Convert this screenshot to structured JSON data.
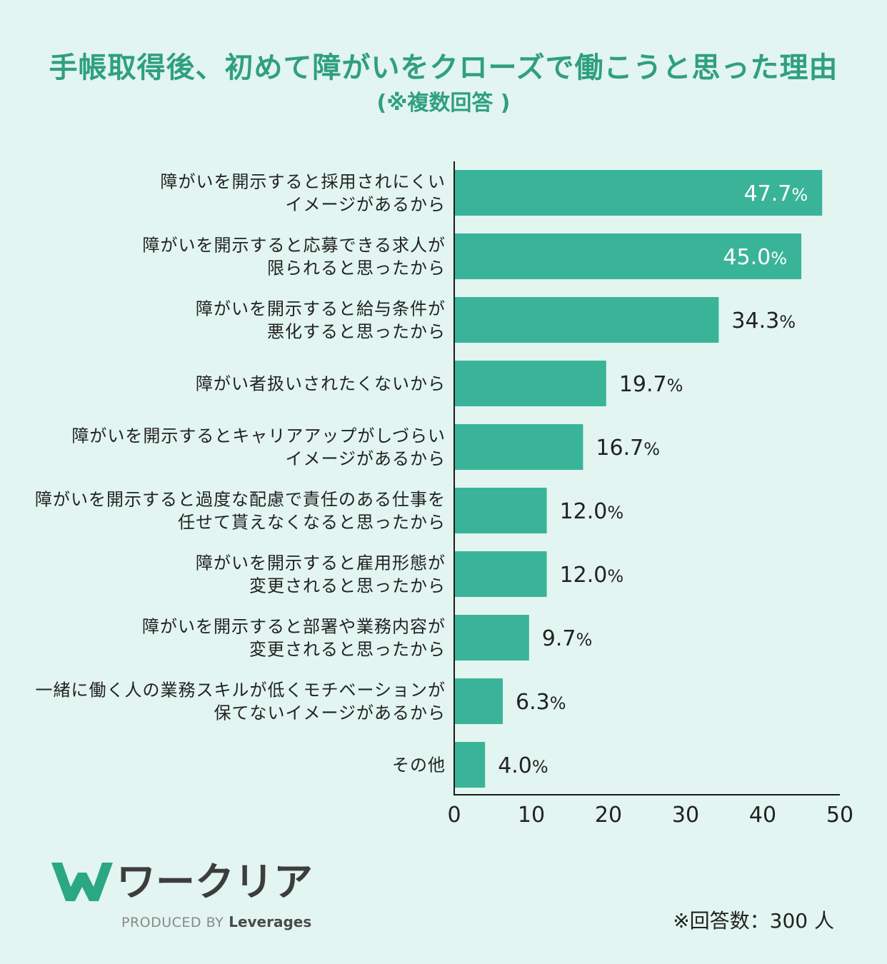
{
  "chart_data": {
    "type": "bar",
    "orientation": "horizontal",
    "title": "手帳取得後、初めて障がいをクローズで働こうと思った理由",
    "subtitle": "(※複数回答 )",
    "categories": [
      "障がいを開示すると採用されにくい\nイメージがあるから",
      "障がいを開示すると応募できる求人が\n限られると思ったから",
      "障がいを開示すると給与条件が\n悪化すると思ったから",
      "障がい者扱いされたくないから",
      "障がいを開示するとキャリアアップがしづらい\nイメージがあるから",
      "障がいを開示すると過度な配慮で責任のある仕事を\n任せて貰えなくなると思ったから",
      "障がいを開示すると雇用形態が\n変更されると思ったから",
      "障がいを開示すると部署や業務内容が\n変更されると思ったから",
      "一緒に働く人の業務スキルが低くモチベーションが\n保てないイメージがあるから",
      "その他"
    ],
    "values": [
      47.7,
      45.0,
      34.3,
      19.7,
      16.7,
      12.0,
      12.0,
      9.7,
      6.3,
      4.0
    ],
    "data_labels": [
      "47.7",
      "45.0",
      "34.3",
      "19.7",
      "16.7",
      "12.0",
      "12.0",
      "9.7",
      "6.3",
      "4.0"
    ],
    "unit": "%",
    "xlim": [
      0,
      50
    ],
    "xticks": [
      0,
      10,
      20,
      30,
      40,
      50
    ],
    "grid": false,
    "legend": "none",
    "note": "※回答数：300 人"
  },
  "branding": {
    "logo_icon": "w-logo-icon",
    "logo_text": "ワークリア",
    "produced_by": "PRODUCED BY",
    "company": "Leverages"
  },
  "colors": {
    "background": "#e2f5f0",
    "title": "#2f9f80",
    "bar": "#3ab498",
    "text": "#222222",
    "label_inside": "#ffffff",
    "logo_mark": "#2aa783",
    "logo_text": "#3d3d3d",
    "produced_by": "#8a8a8a"
  }
}
